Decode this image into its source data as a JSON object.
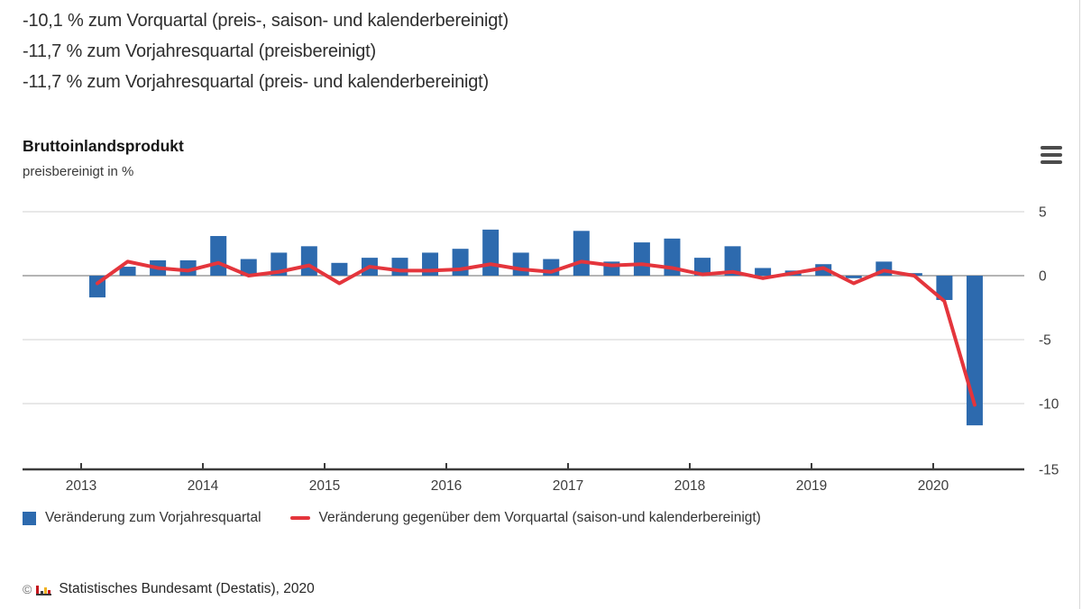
{
  "header": {
    "lines": [
      "-10,1 % zum Vorquartal (preis-, saison- und kalenderbereinigt)",
      "-11,7 % zum Vorjahresquartal (preisbereinigt)",
      "-11,7 % zum Vorjahresquartal (preis- und kalenderbereinigt)"
    ]
  },
  "chart": {
    "title": "Bruttoinlandsprodukt",
    "subtitle": "preisbereinigt in %",
    "menu_icon": "hamburger-icon"
  },
  "chart_data": {
    "type": "bar",
    "title": "Bruttoinlandsprodukt",
    "subtitle": "preisbereinigt in %",
    "categories": [
      "2013 Q1",
      "2013 Q2",
      "2013 Q3",
      "2013 Q4",
      "2014 Q1",
      "2014 Q2",
      "2014 Q3",
      "2014 Q4",
      "2015 Q1",
      "2015 Q2",
      "2015 Q3",
      "2015 Q4",
      "2016 Q1",
      "2016 Q2",
      "2016 Q3",
      "2016 Q4",
      "2017 Q1",
      "2017 Q2",
      "2017 Q3",
      "2017 Q4",
      "2018 Q1",
      "2018 Q2",
      "2018 Q3",
      "2018 Q4",
      "2019 Q1",
      "2019 Q2",
      "2019 Q3",
      "2019 Q4",
      "2020 Q1",
      "2020 Q2"
    ],
    "series": [
      {
        "name": "Veränderung zum Vorjahresquartal",
        "type": "bar",
        "color": "#2d6aae",
        "values": [
          -1.7,
          0.7,
          1.2,
          1.2,
          3.1,
          1.3,
          1.8,
          2.3,
          1.0,
          1.4,
          1.4,
          1.8,
          2.1,
          3.6,
          1.8,
          1.3,
          3.5,
          1.1,
          2.6,
          2.9,
          1.4,
          2.3,
          0.6,
          0.4,
          0.9,
          -0.2,
          1.1,
          0.2,
          -1.9,
          -11.7
        ]
      },
      {
        "name": "Veränderung gegenüber dem Vorquartal (saison-und kalenderbereinigt)",
        "type": "line",
        "color": "#e4353c",
        "values": [
          -0.6,
          1.1,
          0.6,
          0.4,
          1.0,
          0.0,
          0.3,
          0.8,
          -0.6,
          0.7,
          0.4,
          0.4,
          0.5,
          0.9,
          0.5,
          0.3,
          1.1,
          0.8,
          0.9,
          0.6,
          0.1,
          0.3,
          -0.2,
          0.2,
          0.6,
          -0.6,
          0.4,
          0.0,
          -2.0,
          -10.1
        ]
      }
    ],
    "xlabel": "",
    "ylabel": "",
    "xticklabels": [
      "2013",
      "2014",
      "2015",
      "2016",
      "2017",
      "2018",
      "2019",
      "2020"
    ],
    "yticks": [
      5,
      0,
      -5,
      -10,
      -15
    ],
    "ylim": [
      -15,
      5
    ],
    "grid": true,
    "legend_position": "bottom"
  },
  "legend": {
    "items": [
      {
        "label": "Veränderung zum Vorjahresquartal",
        "marker": "square",
        "color": "#2d6aae"
      },
      {
        "label": "Veränderung gegenüber dem Vorquartal (saison-und kalenderbereinigt)",
        "marker": "line",
        "color": "#e4353c"
      }
    ]
  },
  "footer": {
    "copyright_symbol": "©",
    "logo_icon": "destatis-logo-icon",
    "source": "Statistisches Bundesamt (Destatis), 2020"
  }
}
